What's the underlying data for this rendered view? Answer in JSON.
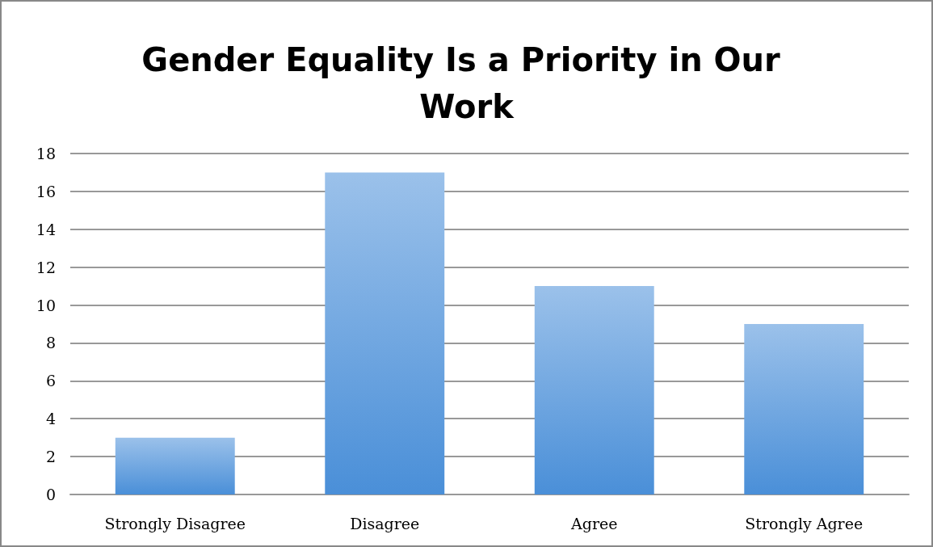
{
  "chart_data": {
    "type": "bar",
    "title": "Gender Equality Is a Priority in Our Work",
    "categories": [
      "Strongly Disagree",
      "Disagree",
      "Agree",
      "Strongly Agree"
    ],
    "values": [
      3,
      17,
      11,
      9
    ],
    "color": "#4a8fd8",
    "ylim": [
      0,
      18
    ],
    "yticks": [
      0,
      2,
      4,
      6,
      8,
      10,
      12,
      14,
      16,
      18
    ],
    "grid": "y"
  }
}
